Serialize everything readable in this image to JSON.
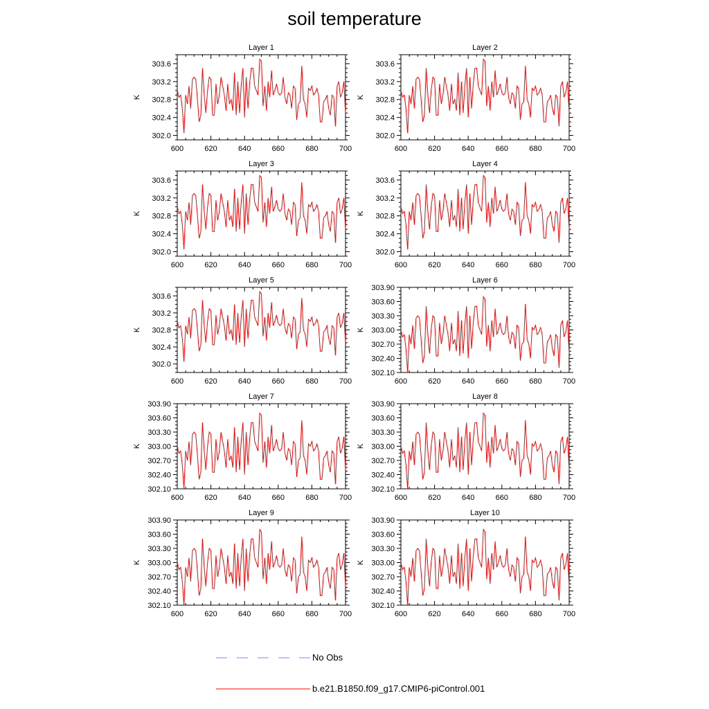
{
  "title": "soil temperature",
  "legend": {
    "no_obs_label": "No Obs",
    "model_label": "b.e21.B1850.f09_g17.CMIP6-piControl.001",
    "no_obs_color": "#8080ff",
    "model_color": "#ff0000"
  },
  "chart_data": [
    {
      "type": "line",
      "title": "Layer 1",
      "ylabel": "K",
      "xlim": [
        600,
        700
      ],
      "ylim": [
        301.9,
        303.8
      ],
      "xticks": [
        600,
        620,
        640,
        660,
        680,
        700
      ],
      "yticks": [
        302.0,
        302.4,
        302.8,
        303.2,
        303.6
      ],
      "ytick_labels": [
        "302.0",
        "302.4",
        "302.8",
        "303.2",
        "303.6"
      ]
    },
    {
      "type": "line",
      "title": "Layer 2",
      "ylabel": "K",
      "xlim": [
        600,
        700
      ],
      "ylim": [
        301.9,
        303.8
      ],
      "xticks": [
        600,
        620,
        640,
        660,
        680,
        700
      ],
      "yticks": [
        302.0,
        302.4,
        302.8,
        303.2,
        303.6
      ],
      "ytick_labels": [
        "302.0",
        "302.4",
        "302.8",
        "303.2",
        "303.6"
      ]
    },
    {
      "type": "line",
      "title": "Layer 3",
      "ylabel": "K",
      "xlim": [
        600,
        700
      ],
      "ylim": [
        301.9,
        303.8
      ],
      "xticks": [
        600,
        620,
        640,
        660,
        680,
        700
      ],
      "yticks": [
        302.0,
        302.4,
        302.8,
        303.2,
        303.6
      ],
      "ytick_labels": [
        "302.0",
        "302.4",
        "302.8",
        "303.2",
        "303.6"
      ]
    },
    {
      "type": "line",
      "title": "Layer 4",
      "ylabel": "K",
      "xlim": [
        600,
        700
      ],
      "ylim": [
        301.9,
        303.8
      ],
      "xticks": [
        600,
        620,
        640,
        660,
        680,
        700
      ],
      "yticks": [
        302.0,
        302.4,
        302.8,
        303.2,
        303.6
      ],
      "ytick_labels": [
        "302.0",
        "302.4",
        "302.8",
        "303.2",
        "303.6"
      ]
    },
    {
      "type": "line",
      "title": "Layer 5",
      "ylabel": "K",
      "xlim": [
        600,
        700
      ],
      "ylim": [
        301.8,
        303.8
      ],
      "xticks": [
        600,
        620,
        640,
        660,
        680,
        700
      ],
      "yticks": [
        302.0,
        302.4,
        302.8,
        303.2,
        303.6
      ],
      "ytick_labels": [
        "302.0",
        "302.4",
        "302.8",
        "303.2",
        "303.6"
      ]
    },
    {
      "type": "line",
      "title": "Layer 6",
      "ylabel": "K",
      "xlim": [
        600,
        700
      ],
      "ylim": [
        302.1,
        303.9
      ],
      "xticks": [
        600,
        620,
        640,
        660,
        680,
        700
      ],
      "yticks": [
        302.1,
        302.4,
        302.7,
        303.0,
        303.3,
        303.6,
        303.9
      ],
      "ytick_labels": [
        "302.10",
        "302.40",
        "302.70",
        "303.00",
        "303.30",
        "303.60",
        "303.90"
      ]
    },
    {
      "type": "line",
      "title": "Layer 7",
      "ylabel": "K",
      "xlim": [
        600,
        700
      ],
      "ylim": [
        302.1,
        303.9
      ],
      "xticks": [
        600,
        620,
        640,
        660,
        680,
        700
      ],
      "yticks": [
        302.1,
        302.4,
        302.7,
        303.0,
        303.3,
        303.6,
        303.9
      ],
      "ytick_labels": [
        "302.10",
        "302.40",
        "302.70",
        "303.00",
        "303.30",
        "303.60",
        "303.90"
      ]
    },
    {
      "type": "line",
      "title": "Layer 8",
      "ylabel": "K",
      "xlim": [
        600,
        700
      ],
      "ylim": [
        302.1,
        303.9
      ],
      "xticks": [
        600,
        620,
        640,
        660,
        680,
        700
      ],
      "yticks": [
        302.1,
        302.4,
        302.7,
        303.0,
        303.3,
        303.6,
        303.9
      ],
      "ytick_labels": [
        "302.10",
        "302.40",
        "302.70",
        "303.00",
        "303.30",
        "303.60",
        "303.90"
      ]
    },
    {
      "type": "line",
      "title": "Layer 9",
      "ylabel": "K",
      "xlim": [
        600,
        700
      ],
      "ylim": [
        302.1,
        303.9
      ],
      "xticks": [
        600,
        620,
        640,
        660,
        680,
        700
      ],
      "yticks": [
        302.1,
        302.4,
        302.7,
        303.0,
        303.3,
        303.6,
        303.9
      ],
      "ytick_labels": [
        "302.10",
        "302.40",
        "302.70",
        "303.00",
        "303.30",
        "303.60",
        "303.90"
      ]
    },
    {
      "type": "line",
      "title": "Layer 10",
      "ylabel": "K",
      "xlim": [
        600,
        700
      ],
      "ylim": [
        302.1,
        303.9
      ],
      "xticks": [
        600,
        620,
        640,
        660,
        680,
        700
      ],
      "yticks": [
        302.1,
        302.4,
        302.7,
        303.0,
        303.3,
        303.6,
        303.9
      ],
      "ytick_labels": [
        "302.10",
        "302.40",
        "302.70",
        "303.00",
        "303.30",
        "303.60",
        "303.90"
      ]
    }
  ],
  "series": {
    "name": "b.e21.B1850.f09_g17.CMIP6-piControl.001",
    "x": [
      600,
      601,
      602,
      603,
      604,
      605,
      606,
      607,
      608,
      609,
      610,
      611,
      612,
      613,
      614,
      615,
      616,
      617,
      618,
      619,
      620,
      621,
      622,
      623,
      624,
      625,
      626,
      627,
      628,
      629,
      630,
      631,
      632,
      633,
      634,
      635,
      636,
      637,
      638,
      639,
      640,
      641,
      642,
      643,
      644,
      645,
      646,
      647,
      648,
      649,
      650,
      651,
      652,
      653,
      654,
      655,
      656,
      657,
      658,
      659,
      660,
      661,
      662,
      663,
      664,
      665,
      666,
      667,
      668,
      669,
      670,
      671,
      672,
      673,
      674,
      675,
      676,
      677,
      678,
      679,
      680,
      681,
      682,
      683,
      684,
      685,
      686,
      687,
      688,
      689,
      690,
      691,
      692,
      693,
      694,
      695,
      696,
      697,
      698,
      699,
      700
    ],
    "values": [
      303.0,
      302.85,
      302.9,
      302.6,
      302.05,
      302.9,
      302.7,
      303.1,
      302.6,
      303.25,
      303.3,
      303.25,
      302.8,
      302.3,
      302.45,
      303.5,
      302.9,
      302.5,
      303.0,
      303.3,
      303.25,
      302.45,
      302.45,
      303.15,
      302.7,
      302.9,
      303.3,
      303.1,
      302.9,
      302.55,
      303.15,
      302.7,
      302.8,
      302.55,
      303.4,
      302.45,
      303.2,
      302.5,
      303.1,
      303.5,
      302.4,
      303.3,
      302.6,
      303.15,
      303.5,
      303.5,
      303.1,
      303.0,
      302.9,
      303.7,
      303.65,
      302.65,
      303.1,
      302.55,
      303.2,
      302.85,
      303.45,
      302.9,
      303.0,
      303.15,
      302.95,
      302.9,
      302.95,
      303.3,
      302.85,
      302.7,
      302.95,
      302.9,
      302.6,
      303.1,
      303.05,
      302.35,
      302.7,
      302.75,
      303.55,
      302.8,
      302.7,
      302.4,
      303.05,
      303.0,
      303.1,
      302.9,
      302.95,
      303.05,
      302.9,
      302.3,
      302.3,
      302.75,
      302.8,
      302.9,
      302.6,
      302.45,
      302.9,
      302.85,
      302.2,
      303.1,
      303.2,
      302.85,
      302.95,
      303.2,
      302.5
    ]
  }
}
